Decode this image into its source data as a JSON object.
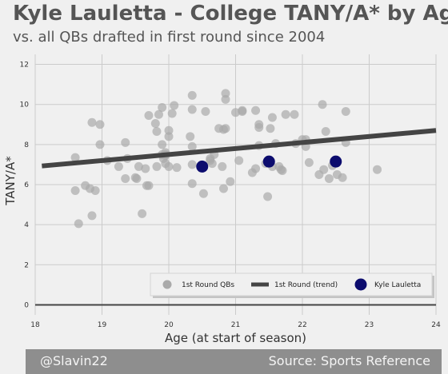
{
  "chart_data": {
    "type": "scatter",
    "title": "Kyle Lauletta - College TANY/A* by Age",
    "subtitle": "vs. all QBs drafted in first round since 2004",
    "xlabel": "Age (at start of season)",
    "ylabel": "TANY/A*",
    "xlim": [
      18,
      24
    ],
    "ylim": [
      -0.5,
      12.5
    ],
    "xticks": [
      "18",
      "19",
      "20",
      "21",
      "22",
      "23",
      "24"
    ],
    "yticks": [
      "0",
      "2",
      "4",
      "6",
      "8",
      "10",
      "12"
    ],
    "grid": true,
    "legend_position": "bottom-right",
    "series": [
      {
        "name": "1st Round QBs",
        "color": "#aaaaaa",
        "points": [
          [
            18.6,
            7.35
          ],
          [
            18.6,
            5.7
          ],
          [
            18.65,
            4.05
          ],
          [
            18.75,
            5.95
          ],
          [
            18.82,
            5.8
          ],
          [
            18.85,
            9.1
          ],
          [
            18.85,
            4.45
          ],
          [
            18.9,
            5.7
          ],
          [
            18.97,
            9.0
          ],
          [
            18.97,
            8.0
          ],
          [
            19.08,
            7.2
          ],
          [
            19.25,
            6.9
          ],
          [
            19.35,
            8.1
          ],
          [
            19.35,
            6.3
          ],
          [
            19.38,
            7.3
          ],
          [
            19.5,
            6.35
          ],
          [
            19.52,
            6.3
          ],
          [
            19.55,
            6.9
          ],
          [
            19.6,
            4.55
          ],
          [
            19.65,
            6.8
          ],
          [
            19.67,
            5.95
          ],
          [
            19.7,
            5.95
          ],
          [
            19.7,
            9.45
          ],
          [
            19.8,
            9.05
          ],
          [
            19.82,
            8.65
          ],
          [
            19.82,
            6.9
          ],
          [
            19.85,
            9.5
          ],
          [
            19.9,
            8.0
          ],
          [
            19.9,
            7.5
          ],
          [
            19.92,
            7.3
          ],
          [
            19.95,
            7.6
          ],
          [
            19.95,
            7.5
          ],
          [
            19.95,
            7.45
          ],
          [
            19.95,
            7.05
          ],
          [
            19.9,
            9.85
          ],
          [
            20.0,
            8.7
          ],
          [
            20.0,
            8.4
          ],
          [
            20.0,
            6.9
          ],
          [
            20.05,
            9.55
          ],
          [
            20.08,
            9.95
          ],
          [
            20.12,
            6.85
          ],
          [
            20.32,
            8.4
          ],
          [
            20.35,
            7.9
          ],
          [
            20.35,
            7.0
          ],
          [
            20.35,
            6.05
          ],
          [
            20.35,
            10.45
          ],
          [
            20.35,
            9.75
          ],
          [
            20.5,
            6.9
          ],
          [
            20.52,
            5.55
          ],
          [
            20.55,
            9.65
          ],
          [
            20.62,
            7.3
          ],
          [
            20.62,
            7.2
          ],
          [
            20.65,
            7.05
          ],
          [
            20.68,
            7.5
          ],
          [
            20.75,
            8.8
          ],
          [
            20.8,
            6.9
          ],
          [
            20.82,
            5.8
          ],
          [
            20.82,
            8.75
          ],
          [
            20.85,
            10.55
          ],
          [
            20.85,
            8.8
          ],
          [
            20.85,
            10.25
          ],
          [
            20.92,
            6.15
          ],
          [
            21.0,
            9.6
          ],
          [
            21.05,
            7.2
          ],
          [
            21.1,
            9.7
          ],
          [
            21.1,
            9.65
          ],
          [
            21.25,
            6.6
          ],
          [
            21.3,
            6.8
          ],
          [
            21.3,
            9.7
          ],
          [
            21.35,
            8.85
          ],
          [
            21.35,
            9.0
          ],
          [
            21.35,
            7.95
          ],
          [
            21.45,
            7.05
          ],
          [
            21.48,
            5.4
          ],
          [
            21.52,
            8.8
          ],
          [
            21.55,
            9.35
          ],
          [
            21.55,
            6.9
          ],
          [
            21.6,
            8.05
          ],
          [
            21.65,
            6.9
          ],
          [
            21.68,
            6.75
          ],
          [
            21.7,
            6.7
          ],
          [
            21.75,
            9.5
          ],
          [
            21.88,
            9.5
          ],
          [
            21.9,
            8.05
          ],
          [
            22.0,
            8.25
          ],
          [
            22.05,
            8.25
          ],
          [
            22.05,
            7.9
          ],
          [
            22.1,
            7.1
          ],
          [
            22.25,
            6.5
          ],
          [
            22.3,
            10.0
          ],
          [
            22.32,
            6.75
          ],
          [
            22.35,
            8.65
          ],
          [
            22.4,
            6.3
          ],
          [
            22.45,
            6.95
          ],
          [
            22.52,
            6.5
          ],
          [
            22.6,
            6.35
          ],
          [
            22.65,
            9.65
          ],
          [
            22.65,
            8.1
          ],
          [
            23.12,
            6.75
          ]
        ]
      },
      {
        "name": "1st Round (trend)",
        "color": "#444444",
        "points": [
          [
            18.1,
            6.93
          ],
          [
            24,
            8.7
          ]
        ]
      },
      {
        "name": "Kyle Lauletta",
        "color": "#0c0c6e",
        "points": [
          [
            20.5,
            6.9
          ],
          [
            21.5,
            7.15
          ],
          [
            22.5,
            7.15
          ]
        ]
      }
    ]
  },
  "footer": {
    "left": "@Slavin22",
    "right": "Source: Sports Reference"
  }
}
